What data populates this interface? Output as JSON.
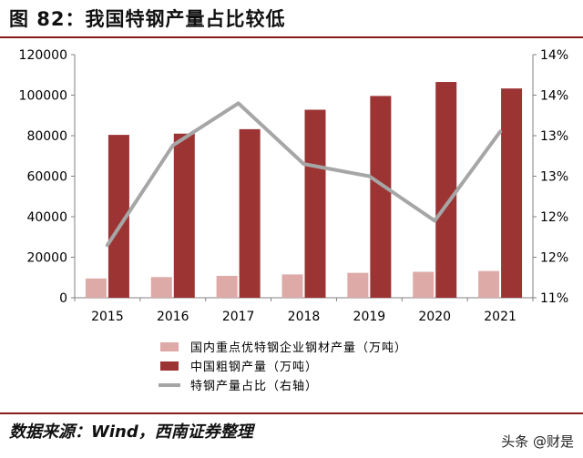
{
  "header": {
    "title": "图 82：我国特钢产量占比较低"
  },
  "footer": {
    "source": "数据来源：Wind，西南证券整理",
    "watermark": "头条 @财是"
  },
  "chart_data": {
    "type": "bar",
    "title": "",
    "categories": [
      "2015",
      "2016",
      "2017",
      "2018",
      "2019",
      "2020",
      "2021"
    ],
    "ylim_left": [
      0,
      120000
    ],
    "yticks_left": [
      "0",
      "20000",
      "40000",
      "60000",
      "80000",
      "100000",
      "120000"
    ],
    "ylim_right": [
      11,
      14
    ],
    "yticks_right": [
      "11%",
      "12%",
      "12%",
      "13%",
      "13%",
      "14%",
      "14%"
    ],
    "grid": false,
    "legend_position": "bottom",
    "series": [
      {
        "name": "国内重点优特钢企业钢材产量（万吨）",
        "type": "bar",
        "axis": "left",
        "color": "#deaaa8",
        "values": [
          9500,
          10200,
          10800,
          11500,
          12300,
          12800,
          13200
        ]
      },
      {
        "name": "中国粗钢产量（万吨）",
        "type": "bar",
        "axis": "left",
        "color": "#9c3434",
        "values": [
          80400,
          81000,
          83200,
          92800,
          99600,
          106500,
          103300
        ]
      },
      {
        "name": "特钢产量占比（右轴）",
        "type": "line",
        "axis": "right",
        "color": "#a6a6a6",
        "values": [
          11.65,
          12.88,
          13.4,
          12.65,
          12.5,
          11.95,
          13.05
        ]
      }
    ]
  }
}
